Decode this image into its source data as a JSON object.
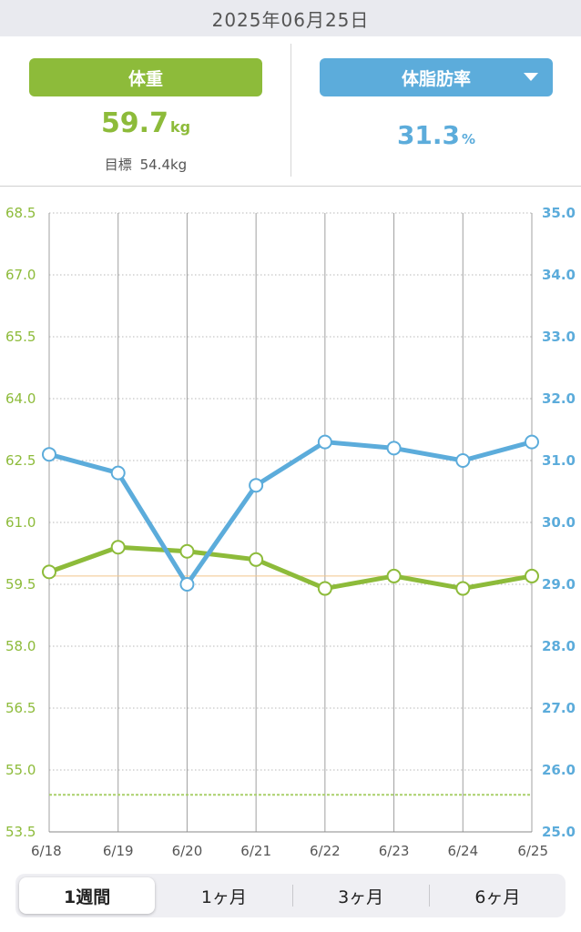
{
  "header": {
    "date": "2025年06月25日"
  },
  "weight_card": {
    "label": "体重",
    "value": "59.7",
    "unit": "kg",
    "goal_label": "目標",
    "goal_value": "54.4kg"
  },
  "fat_card": {
    "label": "体脂肪率",
    "value": "31.3",
    "unit": "%"
  },
  "colors": {
    "weight": "#8dbb3a",
    "fat": "#5cacdb",
    "grid": "#9a9a9a"
  },
  "tabs": [
    {
      "label": "1週間",
      "active": true
    },
    {
      "label": "1ヶ月",
      "active": false
    },
    {
      "label": "3ヶ月",
      "active": false
    },
    {
      "label": "6ヶ月",
      "active": false
    }
  ],
  "chart_data": {
    "type": "line",
    "categories": [
      "6/18",
      "6/19",
      "6/20",
      "6/21",
      "6/22",
      "6/23",
      "6/24",
      "6/25"
    ],
    "y_left": {
      "min": 53.5,
      "max": 68.5,
      "ticks": [
        "53.5",
        "55.0",
        "56.5",
        "58.0",
        "59.5",
        "61.0",
        "62.5",
        "64.0",
        "65.5",
        "67.0",
        "68.5"
      ]
    },
    "y_right": {
      "min": 25.0,
      "max": 35.0,
      "ticks": [
        "25.0",
        "26.0",
        "27.0",
        "28.0",
        "29.0",
        "30.0",
        "31.0",
        "32.0",
        "33.0",
        "34.0",
        "35.0"
      ]
    },
    "series": [
      {
        "name": "体重",
        "axis": "left",
        "color": "#8dbb3a",
        "values": [
          59.8,
          60.4,
          60.3,
          60.1,
          59.4,
          59.7,
          59.4,
          59.7
        ]
      },
      {
        "name": "体脂肪率",
        "axis": "right",
        "color": "#5cacdb",
        "values": [
          31.1,
          30.8,
          29.0,
          30.6,
          31.3,
          31.2,
          31.0,
          31.3
        ]
      }
    ],
    "goal_line": {
      "axis": "left",
      "value": 54.4
    },
    "current_line": {
      "axis": "left",
      "value": 59.7
    },
    "grid": true
  }
}
